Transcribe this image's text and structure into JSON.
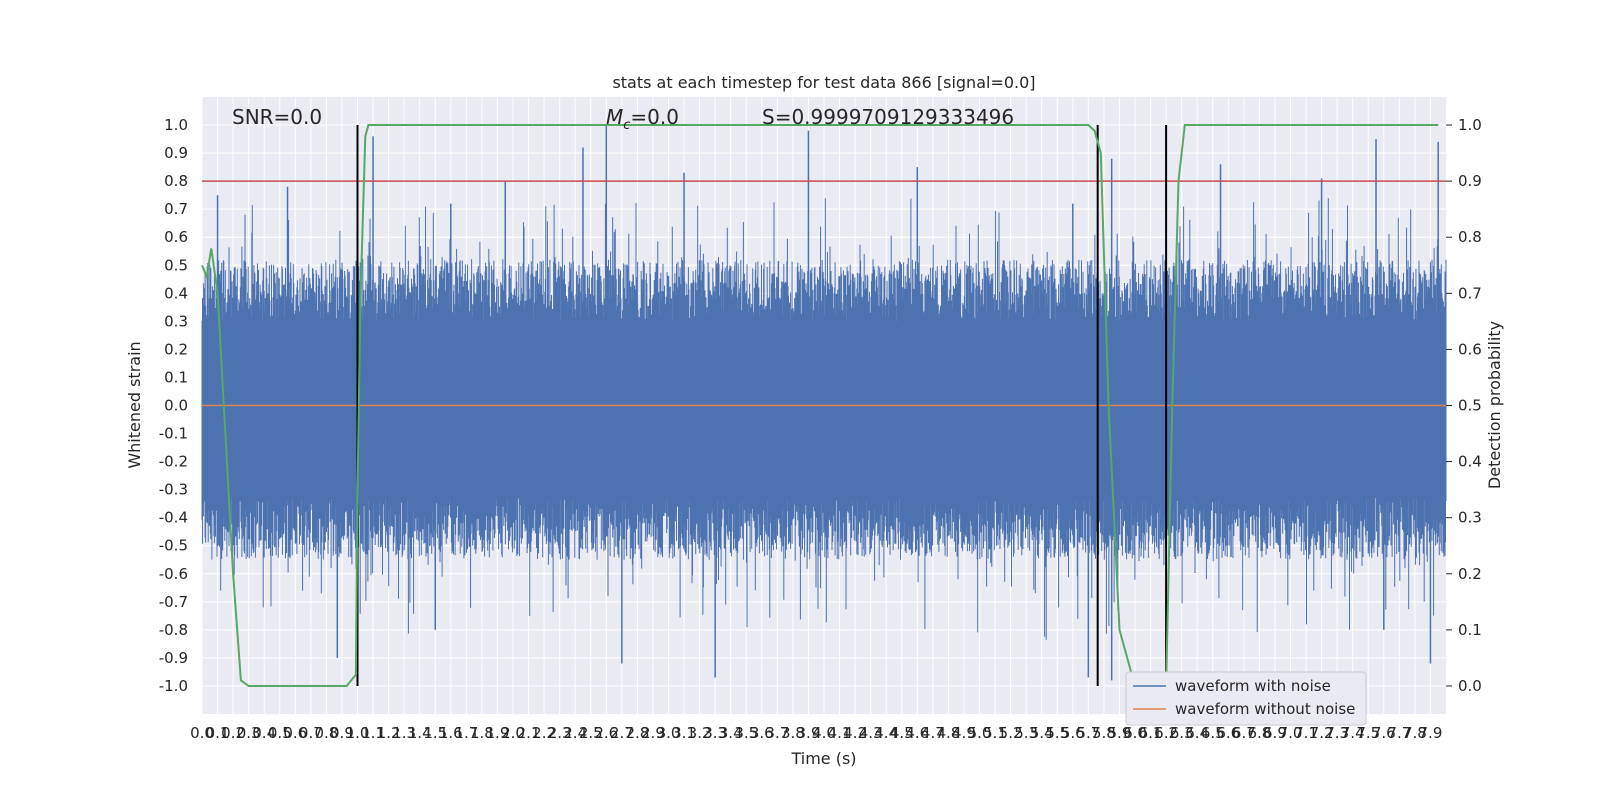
{
  "chart_data": {
    "type": "line",
    "title": "stats at each timestep for test data 866 [signal=0.0]",
    "xlabel": "Time (s)",
    "ylabel": "Whitened strain",
    "y2label": "Detection probability",
    "xlim": [
      0.0,
      8.0
    ],
    "ylim": [
      -1.1,
      1.1
    ],
    "y2lim": [
      -0.05,
      1.05
    ],
    "x_tick_step": 0.1,
    "x_tick_max": 7.9,
    "y_ticks": [
      -1.0,
      -0.9,
      -0.8,
      -0.7,
      -0.6,
      -0.5,
      -0.4,
      -0.3,
      -0.2,
      -0.1,
      0.0,
      0.1,
      0.2,
      0.3,
      0.4,
      0.5,
      0.6,
      0.7,
      0.8,
      0.9,
      1.0
    ],
    "y2_ticks": [
      0.0,
      0.1,
      0.2,
      0.3,
      0.4,
      0.5,
      0.6,
      0.7,
      0.8,
      0.9,
      1.0
    ],
    "grid": true,
    "legend_position": "lower-right",
    "annotations": {
      "snr": "SNR=0.0",
      "mc_symbol": "M",
      "mc_subscript": "c",
      "mc_value": "=0.0",
      "s": "S=0.9999709129333496"
    },
    "threshold_line": {
      "y": 0.8,
      "color": "#c44e52"
    },
    "vertical_lines_x": [
      1.0,
      5.76,
      6.2
    ],
    "series": [
      {
        "name": "waveform with noise",
        "color": "#4c72b0",
        "envelope_note": "dense noise, bulk within roughly ±0.55 with spikes up to ±1.0",
        "peaks_x": [
          0.1,
          0.55,
          1.1,
          1.6,
          1.95,
          2.45,
          2.6,
          3.1,
          3.9,
          4.6,
          5.6,
          5.85,
          6.55,
          7.2,
          7.55,
          7.95
        ],
        "peaks_y": [
          0.75,
          0.78,
          0.96,
          0.72,
          0.8,
          0.92,
          1.0,
          0.83,
          0.98,
          0.85,
          0.72,
          0.88,
          0.86,
          0.81,
          0.95,
          0.94
        ]
      },
      {
        "name": "waveform without noise",
        "color": "#dd8452",
        "x": [
          0.0,
          8.0
        ],
        "y": [
          0.0,
          0.0
        ]
      },
      {
        "name": "detection probability",
        "color": "#55a868",
        "axis": "right",
        "x": [
          0.0,
          0.03,
          0.06,
          0.1,
          0.14,
          0.2,
          0.25,
          0.3,
          0.4,
          0.6,
          0.8,
          0.93,
          0.99,
          1.0,
          1.02,
          1.05,
          1.07,
          1.5,
          2.0,
          3.0,
          4.0,
          5.0,
          5.6,
          5.7,
          5.74,
          5.78,
          5.83,
          5.9,
          6.0,
          6.1,
          6.2,
          6.24,
          6.28,
          6.32,
          6.5,
          7.0,
          7.5,
          7.95
        ],
        "y": [
          0.75,
          0.73,
          0.78,
          0.7,
          0.5,
          0.2,
          0.01,
          0.0,
          0.0,
          0.0,
          0.0,
          0.0,
          0.02,
          0.35,
          0.7,
          0.98,
          1.0,
          1.0,
          1.0,
          1.0,
          1.0,
          1.0,
          1.0,
          1.0,
          0.99,
          0.95,
          0.5,
          0.1,
          0.0,
          0.0,
          0.0,
          0.5,
          0.9,
          1.0,
          1.0,
          1.0,
          1.0,
          1.0
        ]
      }
    ],
    "legend": [
      "waveform with noise",
      "waveform without noise"
    ]
  }
}
